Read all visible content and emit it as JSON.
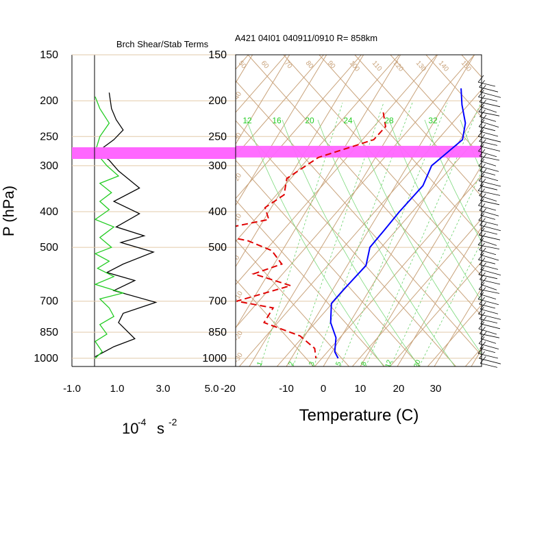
{
  "left_panel": {
    "title": "Brch Shear/Stab Terms",
    "xlabel": "10",
    "xlabel_exp": "-4",
    "xlabel_unit": "s",
    "xlabel_unit_exp": "-2",
    "ylabel": "P (hPa)",
    "xticks": [
      "-1.0",
      "1.0",
      "3.0",
      "5.0"
    ]
  },
  "skewt": {
    "title": "A421 04I01 040911/0910 R= 858km",
    "xlabel": "Temperature (C)",
    "xticks": [
      "-20",
      "-10",
      "0",
      "10",
      "20",
      "30"
    ],
    "mixing_ratio_labels": [
      "12",
      "16",
      "20",
      "24",
      "28",
      "32"
    ],
    "mixing_ratio_low_labels": [
      "1",
      "2",
      "3",
      "5",
      "8",
      "12",
      "20"
    ],
    "theta_labels": [
      "50",
      "60",
      "70",
      "80",
      "90",
      "100",
      "110",
      "120",
      "130",
      "140",
      "150"
    ],
    "wet_bulb_labels": [
      "40",
      "30",
      "20",
      "10",
      "0",
      "-10",
      "-20",
      "-30"
    ]
  },
  "pressure_levels": [
    "150",
    "200",
    "250",
    "300",
    "400",
    "500",
    "700",
    "850",
    "1000"
  ],
  "colors": {
    "temperature": "#0000ff",
    "dewpoint": "#e00000",
    "shear": "#000000",
    "stability": "#22cc22",
    "highlight": "#ff66ff",
    "background_lines": "#c8a27a"
  },
  "chart_data": [
    {
      "type": "line",
      "title": "Brch Shear/Stab Terms",
      "xlim": [
        -1.0,
        5.0
      ],
      "yaxis": "pressure (hPa), log scale, 150-1000",
      "series": [
        {
          "color": "black",
          "points": [
            [
              0.6,
              190
            ],
            [
              0.7,
              210
            ],
            [
              0.9,
              225
            ],
            [
              1.2,
              240
            ],
            [
              0.8,
              255
            ],
            [
              0.1,
              275
            ],
            [
              0.6,
              290
            ],
            [
              1.0,
              310
            ],
            [
              1.9,
              345
            ],
            [
              0.8,
              375
            ],
            [
              1.9,
              405
            ],
            [
              0.9,
              440
            ],
            [
              2.1,
              465
            ],
            [
              1.1,
              485
            ],
            [
              2.5,
              515
            ],
            [
              1.2,
              555
            ],
            [
              0.5,
              585
            ],
            [
              1.7,
              615
            ],
            [
              0.8,
              655
            ],
            [
              2.6,
              705
            ],
            [
              1.2,
              755
            ],
            [
              1.0,
              800
            ],
            [
              1.7,
              885
            ],
            [
              0.8,
              930
            ],
            [
              0.0,
              990
            ]
          ]
        },
        {
          "color": "green",
          "points": [
            [
              0.0,
              195
            ],
            [
              0.2,
              210
            ],
            [
              0.6,
              230
            ],
            [
              0.2,
              250
            ],
            [
              0.0,
              275
            ],
            [
              0.5,
              300
            ],
            [
              1.0,
              320
            ],
            [
              0.2,
              335
            ],
            [
              0.7,
              355
            ],
            [
              0.2,
              375
            ],
            [
              0.6,
              395
            ],
            [
              0.0,
              420
            ],
            [
              0.8,
              440
            ],
            [
              0.2,
              470
            ],
            [
              0.7,
              500
            ],
            [
              0.0,
              520
            ],
            [
              0.6,
              545
            ],
            [
              0.1,
              570
            ],
            [
              0.8,
              600
            ],
            [
              0.0,
              630
            ],
            [
              1.2,
              665
            ],
            [
              0.2,
              690
            ],
            [
              0.6,
              730
            ],
            [
              0.8,
              770
            ],
            [
              0.2,
              810
            ],
            [
              0.5,
              860
            ],
            [
              0.0,
              900
            ],
            [
              0.3,
              960
            ],
            [
              0.0,
              1000
            ]
          ]
        }
      ]
    },
    {
      "type": "line",
      "title": "A421 04I01 040911/0910 R= 858km",
      "xlabel": "Temperature (C)",
      "ylabel": "P (hPa)",
      "xlim": [
        -25,
        40
      ],
      "ylim": [
        1000,
        150
      ],
      "highlight_band_hpa": [
        265,
        285
      ],
      "series": [
        {
          "name": "temperature",
          "color": "blue",
          "points": [
            [
              -8,
              185
            ],
            [
              -5,
              205
            ],
            [
              -1,
              230
            ],
            [
              1,
              255
            ],
            [
              -3,
              300
            ],
            [
              -2,
              340
            ],
            [
              -4,
              400
            ],
            [
              -5,
              450
            ],
            [
              -6,
              500
            ],
            [
              -4,
              560
            ],
            [
              -6,
              650
            ],
            [
              -7,
              710
            ],
            [
              -4,
              800
            ],
            [
              0,
              880
            ],
            [
              2,
              960
            ],
            [
              4,
              1000
            ]
          ]
        },
        {
          "name": "dewpoint",
          "color": "red",
          "points": [
            [
              -25,
              215
            ],
            [
              -22,
              235
            ],
            [
              -23,
              255
            ],
            [
              -35,
              285
            ],
            [
              -40,
              325
            ],
            [
              -38,
              360
            ],
            [
              -41,
              390
            ],
            [
              -38,
              420
            ],
            [
              -53,
              455
            ],
            [
              -40,
              480
            ],
            [
              -32,
              510
            ],
            [
              -27,
              555
            ],
            [
              -33,
              590
            ],
            [
              -21,
              635
            ],
            [
              -33,
              700
            ],
            [
              -22,
              730
            ],
            [
              -22,
              800
            ],
            [
              -10,
              870
            ],
            [
              -4,
              940
            ],
            [
              -2,
              1000
            ]
          ]
        }
      ]
    }
  ]
}
